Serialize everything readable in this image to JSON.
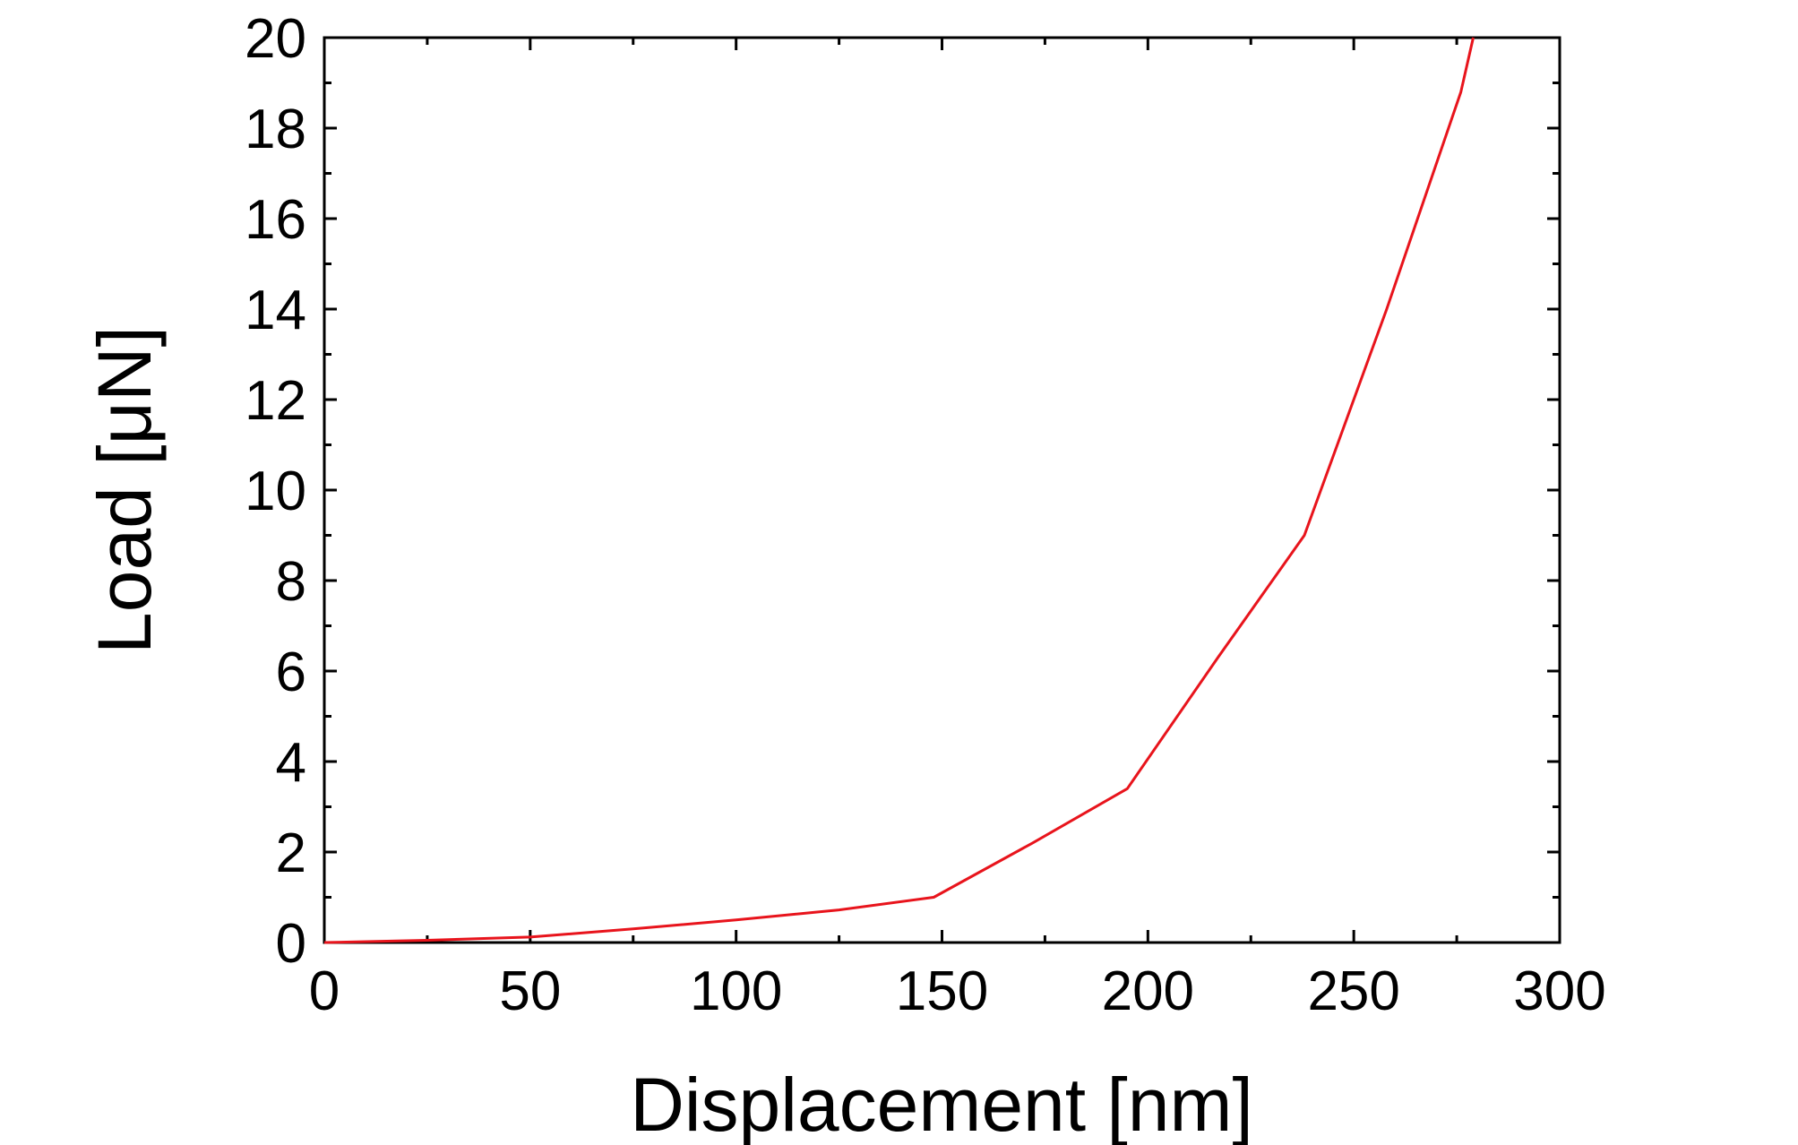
{
  "chart_data": {
    "type": "line",
    "title": "",
    "xlabel": "Displacement [nm]",
    "ylabel": "Load [μN]",
    "xlim": [
      0,
      300
    ],
    "ylim": [
      0,
      20
    ],
    "x_ticks": [
      0,
      50,
      100,
      150,
      200,
      250,
      300
    ],
    "y_ticks": [
      0,
      2,
      4,
      6,
      8,
      10,
      12,
      14,
      16,
      18,
      20
    ],
    "grid": false,
    "legend": "none",
    "series": [
      {
        "color": "#e8141c",
        "x": [
          0,
          25,
          50,
          75,
          100,
          125,
          148,
          172,
          195,
          217,
          238,
          258,
          276,
          279
        ],
        "y": [
          0,
          0.05,
          0.12,
          0.3,
          0.5,
          0.72,
          1.0,
          2.2,
          3.4,
          6.3,
          9.0,
          14.0,
          18.8,
          20.0
        ]
      }
    ]
  }
}
